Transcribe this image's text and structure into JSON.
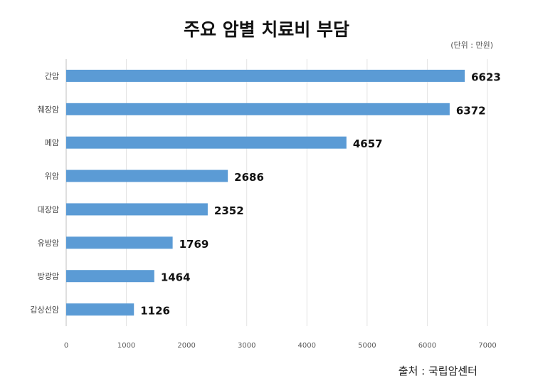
{
  "chart_data": {
    "type": "bar",
    "orientation": "horizontal",
    "title": "주요 암별 치료비 부담",
    "unit_note": "(단위 : 만원)",
    "source": "출처 : 국립암센터",
    "categories": [
      "간암",
      "췌장암",
      "폐암",
      "위암",
      "대장암",
      "유방암",
      "방광암",
      "갑상선암"
    ],
    "values": [
      6623,
      6372,
      4657,
      2686,
      2352,
      1769,
      1464,
      1126
    ],
    "xlim": [
      0,
      7000
    ],
    "xticks": [
      0,
      1000,
      2000,
      3000,
      4000,
      5000,
      6000,
      7000
    ],
    "grid": true,
    "bar_color": "#5b9bd5",
    "data_labels": true
  }
}
